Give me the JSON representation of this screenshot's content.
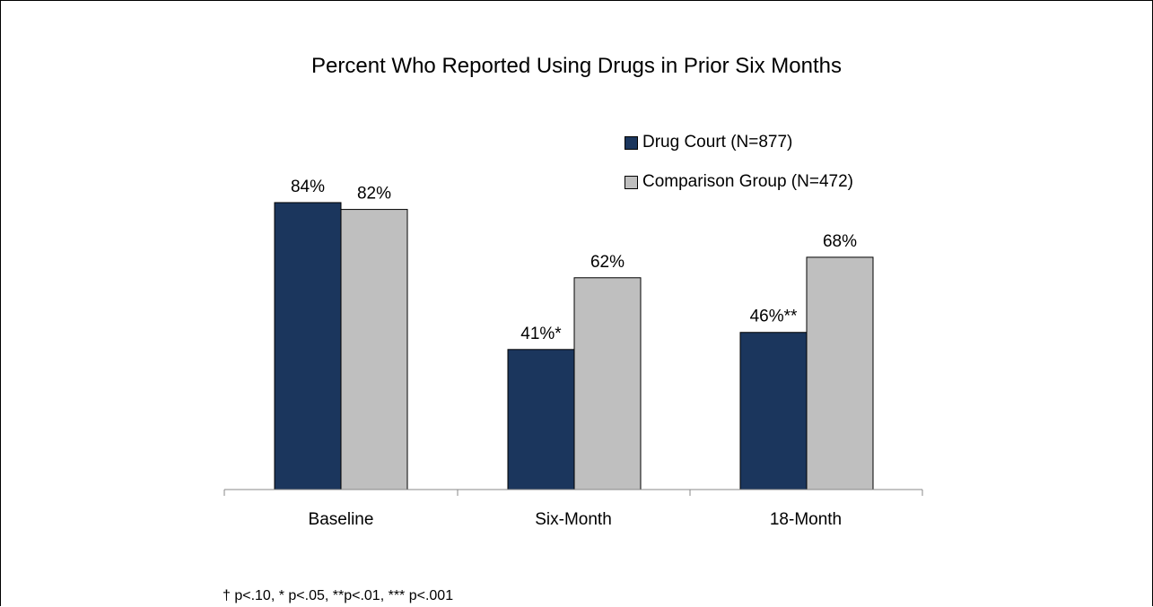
{
  "chart_data": {
    "type": "bar",
    "title": "Percent Who Reported Using Drugs in Prior Six Months",
    "categories": [
      "Baseline",
      "Six-Month",
      "18-Month"
    ],
    "series": [
      {
        "name": "Drug Court (N=877)",
        "color": "#1b365d",
        "values": [
          84,
          41,
          46
        ],
        "labels": [
          "84%",
          "41%*",
          "46%**"
        ]
      },
      {
        "name": "Comparison Group (N=472)",
        "color": "#bfbfbf",
        "values": [
          82,
          62,
          68
        ],
        "labels": [
          "82%",
          "62%",
          "68%"
        ]
      }
    ],
    "ylim": [
      0,
      100
    ],
    "xlabel": "",
    "ylabel": "",
    "grid": false,
    "legend_position": "top-right",
    "footnote": "† p<.10,  * p<.05,  **p<.01,  *** p<.001"
  }
}
